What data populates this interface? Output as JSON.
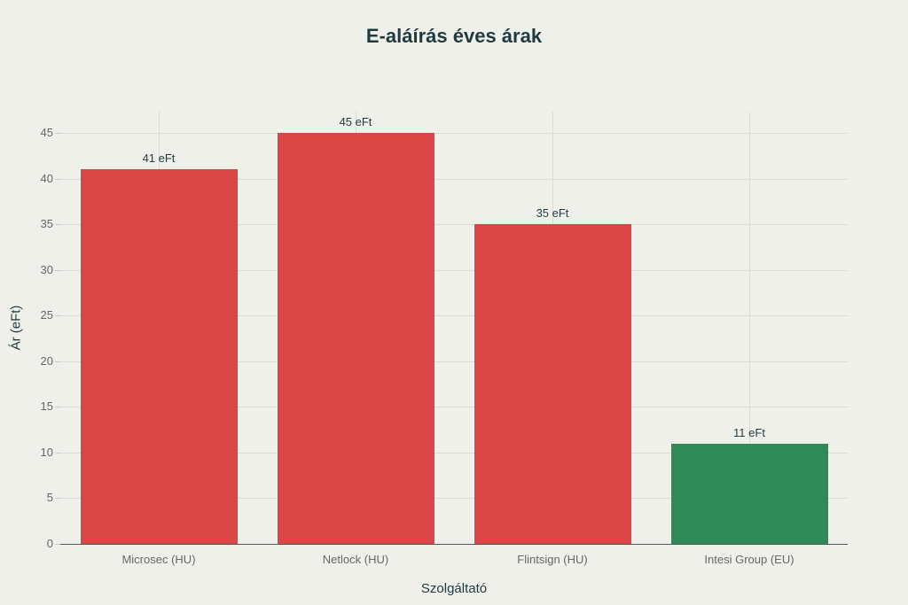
{
  "chart_data": {
    "type": "bar",
    "title": "E-aláírás éves árak",
    "xlabel": "Szolgáltató",
    "ylabel": "Ár (eFt)",
    "categories": [
      "Microsec (HU)",
      "Netlock (HU)",
      "Flintsign (HU)",
      "Intesi Group (EU)"
    ],
    "values": [
      41,
      45,
      35,
      11
    ],
    "data_labels": [
      "41 eFt",
      "45 eFt",
      "35 eFt",
      "11 eFt"
    ],
    "colors": [
      "#db4747",
      "#db4747",
      "#db4747",
      "#2e8b57"
    ],
    "ylim": [
      0,
      47
    ],
    "yticks": [
      0,
      5,
      10,
      15,
      20,
      25,
      30,
      35,
      40,
      45
    ],
    "grid": true,
    "legend": null
  }
}
